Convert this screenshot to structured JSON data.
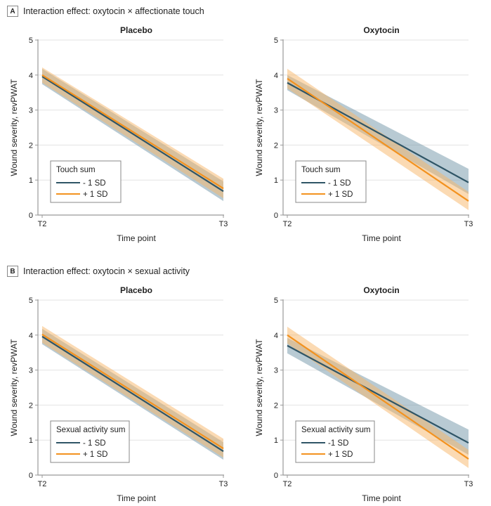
{
  "panels": [
    {
      "letter": "A",
      "title": "Interaction effect: oxytocin × affectionate touch",
      "legend_title": "Touch sum"
    },
    {
      "letter": "B",
      "title": "Interaction effect: oxytocin × sexual activity",
      "legend_title": "Sexual activity sum"
    }
  ],
  "colors": {
    "minus_sd": "#2f5566",
    "minus_sd_band": "#7e9eae",
    "plus_sd": "#f3921f",
    "plus_sd_band": "#f8b567"
  },
  "chart_data": [
    {
      "type": "line",
      "panel": "A",
      "title": "Placebo",
      "xlabel": "Time point",
      "ylabel": "Wound severity, revPWAT",
      "x": [
        "T2",
        "T3"
      ],
      "ylim": [
        0,
        5
      ],
      "yticks": [
        0,
        1,
        2,
        3,
        4,
        5
      ],
      "grid": true,
      "legend_title": "Touch sum",
      "legend_position": "bottom-left",
      "series": [
        {
          "name": "- 1 SD",
          "key": "minus_sd",
          "values": [
            3.96,
            0.68
          ],
          "ci_low": [
            3.74,
            0.4
          ],
          "ci_high": [
            4.18,
            0.96
          ]
        },
        {
          "name": "+ 1 SD",
          "key": "plus_sd",
          "values": [
            4.0,
            0.76
          ],
          "ci_low": [
            3.78,
            0.48
          ],
          "ci_high": [
            4.22,
            1.04
          ]
        }
      ]
    },
    {
      "type": "line",
      "panel": "A",
      "title": "Oxytocin",
      "xlabel": "Time point",
      "ylabel": "Wound severity, revPWAT",
      "x": [
        "T2",
        "T3"
      ],
      "ylim": [
        0,
        5
      ],
      "yticks": [
        0,
        1,
        2,
        3,
        4,
        5
      ],
      "grid": true,
      "legend_title": "Touch sum",
      "legend_position": "bottom-left",
      "series": [
        {
          "name": "- 1 SD",
          "key": "minus_sd",
          "values": [
            3.78,
            0.93
          ],
          "ci_low": [
            3.57,
            0.6
          ],
          "ci_high": [
            4.0,
            1.32
          ]
        },
        {
          "name": "+ 1 SD",
          "key": "plus_sd",
          "values": [
            3.9,
            0.4
          ],
          "ci_low": [
            3.62,
            0.14
          ],
          "ci_high": [
            4.18,
            0.66
          ]
        }
      ]
    },
    {
      "type": "line",
      "panel": "B",
      "title": "Placebo",
      "xlabel": "Time point",
      "ylabel": "Wound severity, revPWAT",
      "x": [
        "T2",
        "T3"
      ],
      "ylim": [
        0,
        5
      ],
      "yticks": [
        0,
        1,
        2,
        3,
        4,
        5
      ],
      "grid": true,
      "legend_title": "Sexual activity sum",
      "legend_position": "bottom-left",
      "series": [
        {
          "name": "- 1 SD",
          "key": "minus_sd",
          "values": [
            3.96,
            0.68
          ],
          "ci_low": [
            3.74,
            0.44
          ],
          "ci_high": [
            4.18,
            0.94
          ]
        },
        {
          "name": "+ 1 SD",
          "key": "plus_sd",
          "values": [
            4.02,
            0.76
          ],
          "ci_low": [
            3.78,
            0.5
          ],
          "ci_high": [
            4.26,
            1.04
          ]
        }
      ]
    },
    {
      "type": "line",
      "panel": "B",
      "title": "Oxytocin",
      "xlabel": "Time point",
      "ylabel": "Wound severity, revPWAT",
      "x": [
        "T2",
        "T3"
      ],
      "ylim": [
        0,
        5
      ],
      "yticks": [
        0,
        1,
        2,
        3,
        4,
        5
      ],
      "grid": true,
      "legend_title": "Sexual activity sum",
      "legend_position": "bottom-left",
      "series": [
        {
          "name": "-1 SD",
          "key": "minus_sd",
          "values": [
            3.7,
            0.92
          ],
          "ci_low": [
            3.48,
            0.58
          ],
          "ci_high": [
            3.92,
            1.3
          ]
        },
        {
          "name": "+ 1 SD",
          "key": "plus_sd",
          "values": [
            4.0,
            0.46
          ],
          "ci_low": [
            3.76,
            0.2
          ],
          "ci_high": [
            4.24,
            0.72
          ]
        }
      ]
    }
  ]
}
